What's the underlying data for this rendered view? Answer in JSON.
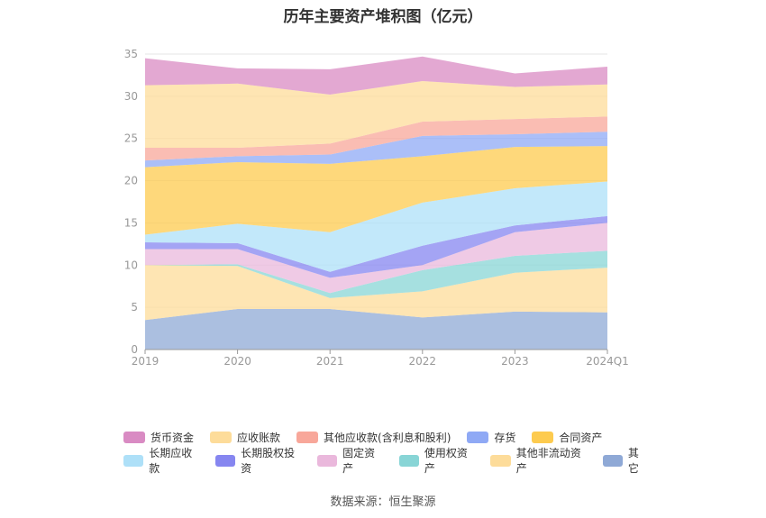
{
  "chart_data": {
    "type": "area",
    "stacked": true,
    "title": "历年主要资产堆积图（亿元）",
    "categories": [
      "2019",
      "2020",
      "2021",
      "2022",
      "2023",
      "2024Q1"
    ],
    "ylim": [
      0,
      35
    ],
    "yticks": [
      0,
      5,
      10,
      15,
      20,
      25,
      30,
      35
    ],
    "grid": true,
    "legend_position": "bottom",
    "series": [
      {
        "name": "其它",
        "color": "#8fa9d6",
        "values": [
          3.5,
          4.8,
          4.8,
          3.8,
          4.5,
          4.4
        ]
      },
      {
        "name": "其他非流动资产",
        "color": "#fddc9a",
        "values": [
          6.5,
          5.1,
          1.3,
          3.1,
          4.6,
          5.3
        ]
      },
      {
        "name": "使用权资产",
        "color": "#88d5d6",
        "values": [
          0.0,
          0.2,
          0.6,
          2.5,
          2.0,
          2.0
        ]
      },
      {
        "name": "固定资产",
        "color": "#eab8dc",
        "values": [
          1.9,
          1.8,
          1.8,
          0.6,
          2.8,
          3.3
        ]
      },
      {
        "name": "长期股权投资",
        "color": "#8686f0",
        "values": [
          0.8,
          0.7,
          0.7,
          2.3,
          0.8,
          0.8
        ]
      },
      {
        "name": "长期应收款",
        "color": "#aee0f8",
        "values": [
          0.9,
          2.3,
          4.7,
          5.1,
          4.4,
          4.1
        ]
      },
      {
        "name": "合同资产",
        "color": "#fdcb4f",
        "values": [
          8.0,
          7.3,
          8.1,
          5.5,
          4.9,
          4.2
        ]
      },
      {
        "name": "存货",
        "color": "#8fa9f5",
        "values": [
          0.8,
          0.7,
          1.1,
          2.4,
          1.5,
          1.7
        ]
      },
      {
        "name": "其他应收款(含利息和股利)",
        "color": "#f8a79a",
        "values": [
          1.5,
          1.0,
          1.3,
          1.7,
          1.8,
          1.8
        ]
      },
      {
        "name": "应收账款",
        "color": "#fddc9a",
        "values": [
          7.4,
          7.6,
          5.8,
          4.8,
          3.8,
          3.8
        ]
      },
      {
        "name": "货币资金",
        "color": "#d98bc3",
        "values": [
          3.2,
          1.8,
          3.0,
          2.9,
          1.6,
          2.1
        ]
      }
    ]
  },
  "legend": {
    "row1": [
      {
        "label": "货币资金",
        "color": "#d98bc3"
      },
      {
        "label": "应收账款",
        "color": "#fddc9a"
      },
      {
        "label": "其他应收款(含利息和股利)",
        "color": "#f8a79a"
      },
      {
        "label": "存货",
        "color": "#8fa9f5"
      },
      {
        "label": "合同资产",
        "color": "#fdcb4f"
      }
    ],
    "row2": [
      {
        "label": "长期应收款",
        "color": "#aee0f8"
      },
      {
        "label": "长期股权投资",
        "color": "#8686f0"
      },
      {
        "label": "固定资产",
        "color": "#eab8dc"
      },
      {
        "label": "使用权资产",
        "color": "#88d5d6"
      },
      {
        "label": "其他非流动资产",
        "color": "#fddc9a"
      },
      {
        "label": "其它",
        "color": "#8fa9d6"
      }
    ]
  },
  "source_text": "数据来源：恒生聚源"
}
